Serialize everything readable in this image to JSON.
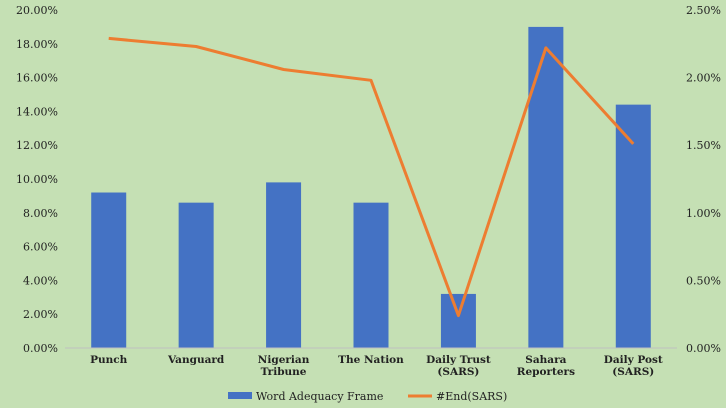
{
  "chart_data": {
    "type": "bar+line",
    "title": "",
    "categories": [
      [
        "Punch"
      ],
      [
        "Vanguard"
      ],
      [
        "Nigerian",
        "Tribune"
      ],
      [
        "The Nation"
      ],
      [
        "Daily Trust",
        "(SARS)"
      ],
      [
        "Sahara",
        "Reporters"
      ],
      [
        "Daily Post",
        "(SARS)"
      ]
    ],
    "series": [
      {
        "name": "Word Adequacy Frame",
        "type": "bar",
        "axis": "left",
        "color": "#4472c4",
        "values": [
          9.2,
          8.6,
          9.8,
          8.6,
          3.2,
          19.0,
          14.4
        ]
      },
      {
        "name": "#End(SARS)",
        "type": "line",
        "axis": "right",
        "color": "#ed7d31",
        "values": [
          2.29,
          2.23,
          2.06,
          1.98,
          0.24,
          2.22,
          1.51
        ]
      }
    ],
    "left_axis": {
      "min": 0,
      "max": 20,
      "step": 2,
      "ticks": [
        "0.00%",
        "2.00%",
        "4.00%",
        "6.00%",
        "8.00%",
        "10.00%",
        "12.00%",
        "14.00%",
        "16.00%",
        "18.00%",
        "20.00%"
      ]
    },
    "right_axis": {
      "min": 0,
      "max": 2.5,
      "step": 0.5,
      "ticks": [
        "0.00%",
        "0.50%",
        "1.00%",
        "1.50%",
        "2.00%",
        "2.50%"
      ]
    },
    "grid": false,
    "legend": "bottom"
  }
}
